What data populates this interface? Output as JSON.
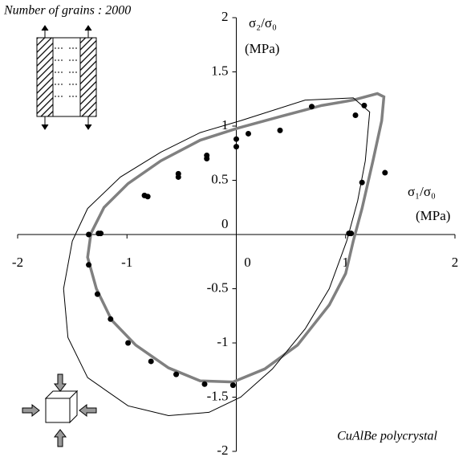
{
  "chart_data": {
    "type": "scatter",
    "title": "Number of grains : 2000",
    "annotation": "CuAlBe polycrystal",
    "xlabel": "σ₁/σ₀",
    "xunit": "(MPa)",
    "ylabel": "σ₂/σ₀",
    "yunit": "(MPa)",
    "xlim": [
      -2,
      2
    ],
    "ylim": [
      -2,
      2
    ],
    "xticks": [
      -2,
      -1,
      0,
      1,
      2
    ],
    "yticks": [
      -2,
      -1.5,
      -1,
      -0.5,
      0,
      0.5,
      1,
      1.5,
      2
    ],
    "grid": false,
    "points": {
      "color": "#000000",
      "x": [
        0.69,
        0.4,
        0.11,
        0,
        0,
        -0.27,
        -0.27,
        -0.53,
        -0.53,
        -0.84,
        -0.81,
        -1.26,
        -1.24,
        -1.35,
        -1.35,
        -1.27,
        -1.15,
        -0.99,
        -0.78,
        -0.55,
        -0.29,
        -0.03,
        1.03,
        1.05,
        1.15,
        1.36,
        1.17,
        1.09
      ],
      "y": [
        1.18,
        0.96,
        0.93,
        0.88,
        0.81,
        0.73,
        0.7,
        0.56,
        0.53,
        0.36,
        0.35,
        0.01,
        0.01,
        0,
        -0.28,
        -0.55,
        -0.78,
        -1.0,
        -1.17,
        -1.29,
        -1.38,
        -1.39,
        0.01,
        0.01,
        0.48,
        0.57,
        1.19,
        1.1
      ]
    },
    "curves": [
      {
        "color": "#808080",
        "width": 3.5,
        "x": [
          0.01,
          -0.33,
          -0.69,
          -0.99,
          -1.21,
          -1.33,
          -1.36,
          -1.28,
          -1.14,
          -0.92,
          -0.62,
          -0.33,
          -0.03,
          0.26,
          0.56,
          0.85,
          1.0,
          1.07,
          1.15,
          1.25,
          1.33,
          1.35,
          1.29,
          1.07,
          0.78,
          0.41
        ],
        "y": [
          0.98,
          0.87,
          0.68,
          0.47,
          0.25,
          0.01,
          -0.21,
          -0.5,
          -0.79,
          -1.02,
          -1.23,
          -1.35,
          -1.36,
          -1.24,
          -1.02,
          -0.65,
          -0.36,
          -0.06,
          0.24,
          0.68,
          1.05,
          1.27,
          1.3,
          1.24,
          1.19,
          1.09
        ]
      },
      {
        "color": "#000000",
        "width": 1,
        "x": [
          0.04,
          0.63,
          1.07,
          1.22,
          1.18,
          1.11,
          1.01,
          0.85,
          0.63,
          0.33,
          0.04,
          -0.25,
          -0.62,
          -0.99,
          -1.36,
          -1.54,
          -1.58,
          -1.5,
          -1.36,
          -1.06,
          -0.69,
          -0.33
        ],
        "y": [
          1.05,
          1.24,
          1.26,
          1.13,
          0.68,
          0.31,
          -0.06,
          -0.5,
          -0.87,
          -1.24,
          -1.5,
          -1.64,
          -1.67,
          -1.58,
          -1.32,
          -0.95,
          -0.5,
          -0.06,
          0.24,
          0.53,
          0.76,
          0.94
        ]
      }
    ]
  }
}
